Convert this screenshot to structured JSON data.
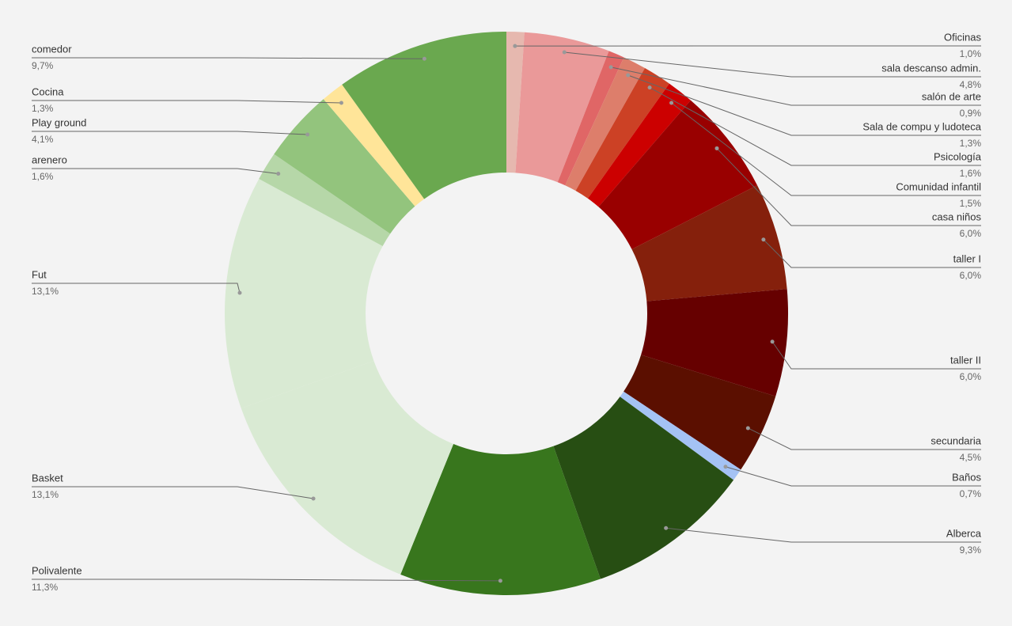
{
  "chart_data": {
    "type": "donut",
    "categories": [
      "Oficinas",
      "sala descanso admin.",
      "salón de arte",
      "Sala de compu y ludoteca",
      "Psicología",
      "Comunidad infantil",
      "casa niños",
      "taller I",
      "taller II",
      "secundaria",
      "Baños",
      "Alberca",
      "Polivalente",
      "Basket",
      "Fut",
      "arenero",
      "Play ground",
      "Cocina",
      "comedor"
    ],
    "values": [
      1.0,
      4.8,
      0.9,
      1.3,
      1.6,
      1.5,
      6.0,
      6.0,
      6.0,
      4.5,
      0.7,
      9.3,
      11.3,
      13.1,
      13.1,
      1.6,
      4.1,
      1.3,
      9.7
    ],
    "value_labels": [
      "1,0%",
      "4,8%",
      "0,9%",
      "1,3%",
      "1,6%",
      "1,5%",
      "6,0%",
      "6,0%",
      "6,0%",
      "4,5%",
      "0,7%",
      "9,3%",
      "11,3%",
      "13,1%",
      "13,1%",
      "1,6%",
      "4,1%",
      "1,3%",
      "9,7%"
    ],
    "colors": [
      "#e6b8af",
      "#ea9999",
      "#e06666",
      "#dd7e6b",
      "#cc4125",
      "#cc0000",
      "#990000",
      "#85200c",
      "#660000",
      "#5b0f00",
      "#a4c2f4",
      "#274e13",
      "#38761d",
      "#d9ead3",
      "#d9ead3",
      "#b6d7a8",
      "#93c47d",
      "#ffe599",
      "#6aa84f"
    ]
  }
}
